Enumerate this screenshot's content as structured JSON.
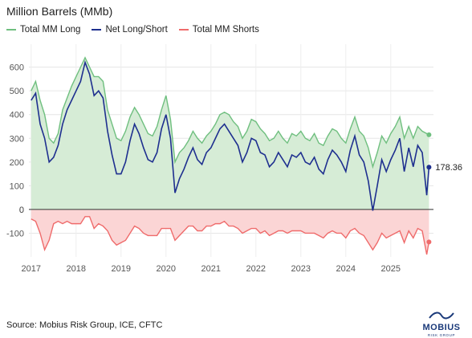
{
  "chart_data": {
    "type": "area",
    "title": "Million Barrels (MMb)",
    "x_unit": "year",
    "ylim": [
      -200,
      680
    ],
    "yticks": [
      -100,
      0,
      100,
      200,
      300,
      400,
      500,
      600
    ],
    "xticks": [
      "2017",
      "2018",
      "2019",
      "2020",
      "2021",
      "2022",
      "2023",
      "2024",
      "2025"
    ],
    "xtick_values": [
      2017,
      2018,
      2019,
      2020,
      2021,
      2022,
      2023,
      2024,
      2025
    ],
    "grid": true,
    "legend": "top-left",
    "x": [
      2017.0,
      2017.1,
      2017.2,
      2017.3,
      2017.4,
      2017.5,
      2017.6,
      2017.7,
      2017.8,
      2017.9,
      2018.0,
      2018.1,
      2018.2,
      2018.3,
      2018.4,
      2018.5,
      2018.6,
      2018.7,
      2018.8,
      2018.9,
      2019.0,
      2019.1,
      2019.2,
      2019.3,
      2019.4,
      2019.5,
      2019.6,
      2019.7,
      2019.8,
      2019.9,
      2020.0,
      2020.1,
      2020.2,
      2020.3,
      2020.4,
      2020.5,
      2020.6,
      2020.7,
      2020.8,
      2020.9,
      2021.0,
      2021.1,
      2021.2,
      2021.3,
      2021.4,
      2021.5,
      2021.6,
      2021.7,
      2021.8,
      2021.9,
      2022.0,
      2022.1,
      2022.2,
      2022.3,
      2022.4,
      2022.5,
      2022.6,
      2022.7,
      2022.8,
      2022.9,
      2023.0,
      2023.1,
      2023.2,
      2023.3,
      2023.4,
      2023.5,
      2023.6,
      2023.7,
      2023.8,
      2023.9,
      2024.0,
      2024.1,
      2024.2,
      2024.3,
      2024.4,
      2024.5,
      2024.6,
      2024.7,
      2024.8,
      2024.9,
      2025.0,
      2025.1,
      2025.2,
      2025.3,
      2025.4,
      2025.5,
      2025.6,
      2025.7,
      2025.8,
      2025.85
    ],
    "series": [
      {
        "name": "Total MM Long",
        "color": "#6fbf7f",
        "fill": "#d6ecd6",
        "values": [
          500,
          540,
          460,
          400,
          300,
          280,
          320,
          420,
          470,
          520,
          560,
          600,
          640,
          600,
          560,
          560,
          540,
          420,
          360,
          300,
          290,
          330,
          390,
          430,
          400,
          360,
          320,
          310,
          350,
          420,
          480,
          380,
          200,
          240,
          260,
          290,
          330,
          300,
          280,
          310,
          330,
          360,
          400,
          410,
          400,
          370,
          350,
          300,
          330,
          380,
          370,
          340,
          320,
          290,
          300,
          330,
          300,
          280,
          320,
          310,
          330,
          300,
          290,
          320,
          280,
          270,
          310,
          340,
          330,
          300,
          280,
          340,
          390,
          330,
          310,
          260,
          180,
          240,
          310,
          280,
          320,
          350,
          390,
          300,
          350,
          300,
          350,
          330,
          320,
          315
        ]
      },
      {
        "name": "Net Long/Short",
        "color": "#1e2f8f",
        "values": [
          460,
          490,
          360,
          300,
          200,
          220,
          270,
          360,
          420,
          460,
          500,
          540,
          620,
          570,
          480,
          500,
          470,
          330,
          230,
          150,
          150,
          200,
          290,
          360,
          320,
          260,
          210,
          200,
          240,
          340,
          400,
          300,
          70,
          130,
          170,
          220,
          260,
          210,
          190,
          240,
          260,
          300,
          340,
          360,
          330,
          300,
          270,
          200,
          240,
          300,
          290,
          240,
          230,
          180,
          200,
          240,
          210,
          180,
          230,
          220,
          240,
          200,
          190,
          220,
          170,
          150,
          210,
          250,
          230,
          200,
          160,
          250,
          310,
          230,
          200,
          120,
          -5,
          100,
          210,
          160,
          210,
          250,
          300,
          160,
          260,
          180,
          270,
          240,
          60,
          178.36
        ]
      },
      {
        "name": "Total MM Shorts",
        "color": "#ef6b6b",
        "fill": "#fbd5d5",
        "values": [
          -40,
          -50,
          -100,
          -170,
          -130,
          -60,
          -50,
          -60,
          -50,
          -60,
          -60,
          -60,
          -30,
          -30,
          -80,
          -60,
          -70,
          -90,
          -130,
          -150,
          -140,
          -130,
          -100,
          -70,
          -80,
          -100,
          -110,
          -110,
          -110,
          -80,
          -80,
          -80,
          -130,
          -110,
          -90,
          -70,
          -70,
          -90,
          -90,
          -70,
          -70,
          -60,
          -60,
          -50,
          -70,
          -70,
          -80,
          -100,
          -90,
          -80,
          -80,
          -100,
          -90,
          -110,
          -100,
          -90,
          -90,
          -100,
          -90,
          -90,
          -90,
          -100,
          -100,
          -100,
          -110,
          -120,
          -100,
          -90,
          -100,
          -100,
          -120,
          -90,
          -80,
          -100,
          -110,
          -140,
          -170,
          -140,
          -100,
          -120,
          -110,
          -100,
          -90,
          -140,
          -90,
          -120,
          -80,
          -90,
          -190,
          -137
        ]
      }
    ],
    "end_label": "178.36"
  },
  "source": "Source: Mobius Risk Group, ICE, CFTC",
  "logo": {
    "word": "MOBIUS",
    "sub": "RISK GROUP",
    "color": "#1b3a7a"
  }
}
